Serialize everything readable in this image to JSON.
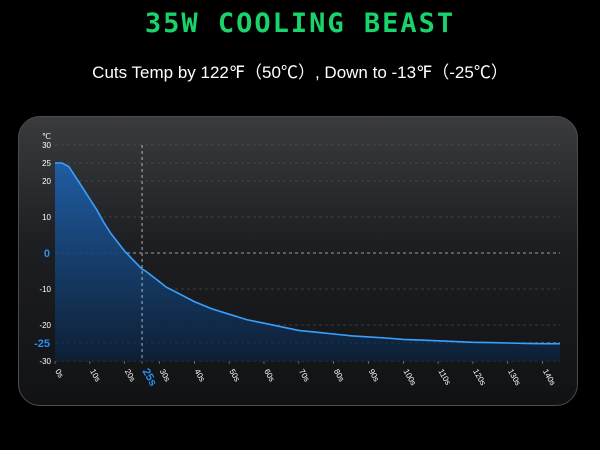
{
  "header": {
    "title": "35W Cooling Beast",
    "subtitle": "Cuts Temp by 122℉（50℃）, Down to -13℉（-25℃）"
  },
  "colors": {
    "title": "#19d46a",
    "line": "#3aa0ff",
    "highlight": "#2a8ff0",
    "background": "#000000"
  },
  "chart_data": {
    "type": "area",
    "ylabel": "℃",
    "xlabel": "",
    "ylim": [
      -30,
      30
    ],
    "xlim": [
      0,
      145
    ],
    "grid": "horizontal-dashed",
    "y_ticks": [
      30,
      25,
      20,
      10,
      0,
      -10,
      -20,
      -25,
      -30
    ],
    "y_ticks_highlight": [
      0,
      -25
    ],
    "x_ticks": [
      "0s",
      "10s",
      "20s",
      "25s",
      "30s",
      "40s",
      "50s",
      "60s",
      "70s",
      "80s",
      "90s",
      "100s",
      "110s",
      "120s",
      "130s",
      "140s"
    ],
    "x_tick_values": [
      0,
      10,
      20,
      25,
      30,
      40,
      50,
      60,
      70,
      80,
      90,
      100,
      110,
      120,
      130,
      140
    ],
    "x_ticks_highlight": [
      "25s"
    ],
    "crosshair": {
      "x": 25,
      "y": 0
    },
    "series": [
      {
        "x": [
          0,
          2,
          4,
          6,
          8,
          10,
          12,
          14,
          16,
          18,
          20,
          22,
          24,
          25,
          26,
          28,
          30,
          32,
          35,
          40,
          45,
          50,
          55,
          60,
          65,
          70,
          75,
          80,
          85,
          90,
          95,
          100,
          105,
          110,
          115,
          120,
          125,
          130,
          135,
          140,
          145
        ],
        "y": [
          25,
          25,
          24,
          21,
          18,
          15,
          12,
          8.5,
          5.5,
          3,
          0.5,
          -1.5,
          -3.5,
          -4.5,
          -5,
          -6.5,
          -8,
          -9.5,
          -11,
          -13.5,
          -15.5,
          -17,
          -18.5,
          -19.5,
          -20.5,
          -21.5,
          -22,
          -22.5,
          -23,
          -23.3,
          -23.6,
          -24,
          -24.2,
          -24.4,
          -24.6,
          -24.8,
          -24.9,
          -25,
          -25.1,
          -25.2,
          -25.2
        ]
      }
    ]
  }
}
